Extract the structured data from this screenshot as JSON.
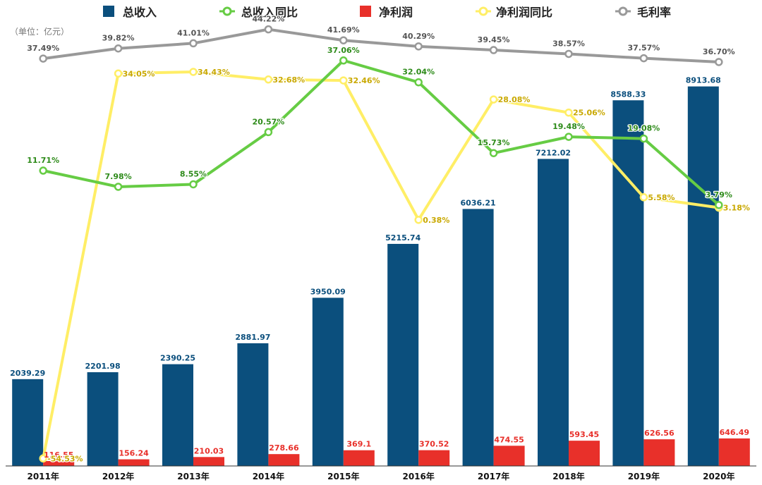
{
  "chart_data": {
    "type": "bar",
    "unit_note": "（单位：亿元）",
    "categories": [
      "2011年",
      "2012年",
      "2013年",
      "2014年",
      "2015年",
      "2016年",
      "2017年",
      "2018年",
      "2019年",
      "2020年"
    ],
    "bar_series": [
      {
        "name": "总收入",
        "color": "#0b4f7d",
        "values": [
          2039.29,
          2201.98,
          2390.25,
          2881.97,
          3950.09,
          5215.74,
          6036.21,
          7212.02,
          8588.33,
          8913.68
        ],
        "labels": [
          "2039.29",
          "2201.98",
          "2390.25",
          "2881.97",
          "3950.09",
          "5215.74",
          "6036.21",
          "7212.02",
          "8588.33",
          "8913.68"
        ]
      },
      {
        "name": "净利润",
        "color": "#e8302a",
        "values": [
          116.55,
          156.24,
          210.03,
          278.66,
          369.1,
          370.52,
          474.55,
          593.45,
          626.56,
          646.49
        ],
        "labels": [
          "116.55",
          "156.24",
          "210.03",
          "278.66",
          "369.1",
          "370.52",
          "474.55",
          "593.45",
          "626.56",
          "646.49"
        ]
      }
    ],
    "line_series": [
      {
        "name": "总收入同比",
        "color": "#66cc44",
        "values": [
          11.71,
          7.98,
          8.55,
          20.57,
          37.06,
          32.04,
          15.73,
          19.48,
          19.08,
          3.79
        ],
        "labels": [
          "11.71%",
          "7.98%",
          "8.55%",
          "20.57%",
          "37.06%",
          "32.04%",
          "15.73%",
          "19.48%",
          "19.08%",
          "3.79%"
        ]
      },
      {
        "name": "净利润同比",
        "color": "#ffee66",
        "values": [
          -54.53,
          34.05,
          34.43,
          32.68,
          32.46,
          0.38,
          28.08,
          25.06,
          5.58,
          3.18
        ],
        "labels": [
          "-54.53%",
          "34.05%",
          "34.43%",
          "32.68%",
          "32.46%",
          "0.38%",
          "28.08%",
          "25.06%",
          "5.58%",
          "3.18%"
        ]
      },
      {
        "name": "毛利率",
        "color": "#999999",
        "values": [
          37.49,
          39.82,
          41.01,
          44.22,
          41.69,
          40.29,
          39.45,
          38.57,
          37.57,
          36.7
        ],
        "labels": [
          "37.49%",
          "39.82%",
          "41.01%",
          "44.22%",
          "41.69%",
          "40.29%",
          "39.45%",
          "38.57%",
          "37.57%",
          "36.70%"
        ]
      }
    ],
    "legend": [
      "总收入",
      "总收入同比",
      "净利润",
      "净利润同比",
      "毛利率"
    ],
    "legend_position": "top",
    "bar_ylim": [
      0,
      10000
    ],
    "line_ylim": [
      -60,
      50
    ],
    "grid": false
  }
}
